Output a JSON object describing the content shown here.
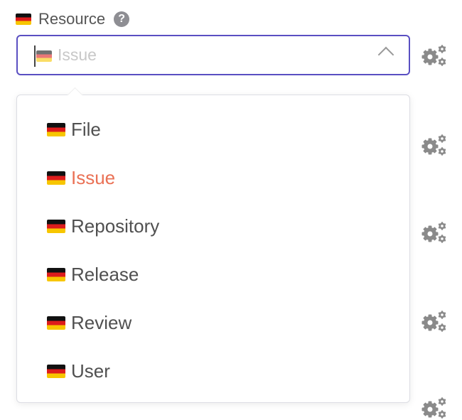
{
  "field": {
    "label": "Resource",
    "help_icon": "question-circle-icon",
    "placeholder": "Issue",
    "accent": "#5a4fc2"
  },
  "dropdown": {
    "selected": "Issue",
    "highlight_color": "#ea7155",
    "items": [
      {
        "label": "File"
      },
      {
        "label": "Issue"
      },
      {
        "label": "Repository"
      },
      {
        "label": "Release"
      },
      {
        "label": "Review"
      },
      {
        "label": "User"
      }
    ]
  },
  "icons": {
    "flag": "german-flag-icon",
    "settings": "gears-icon"
  }
}
